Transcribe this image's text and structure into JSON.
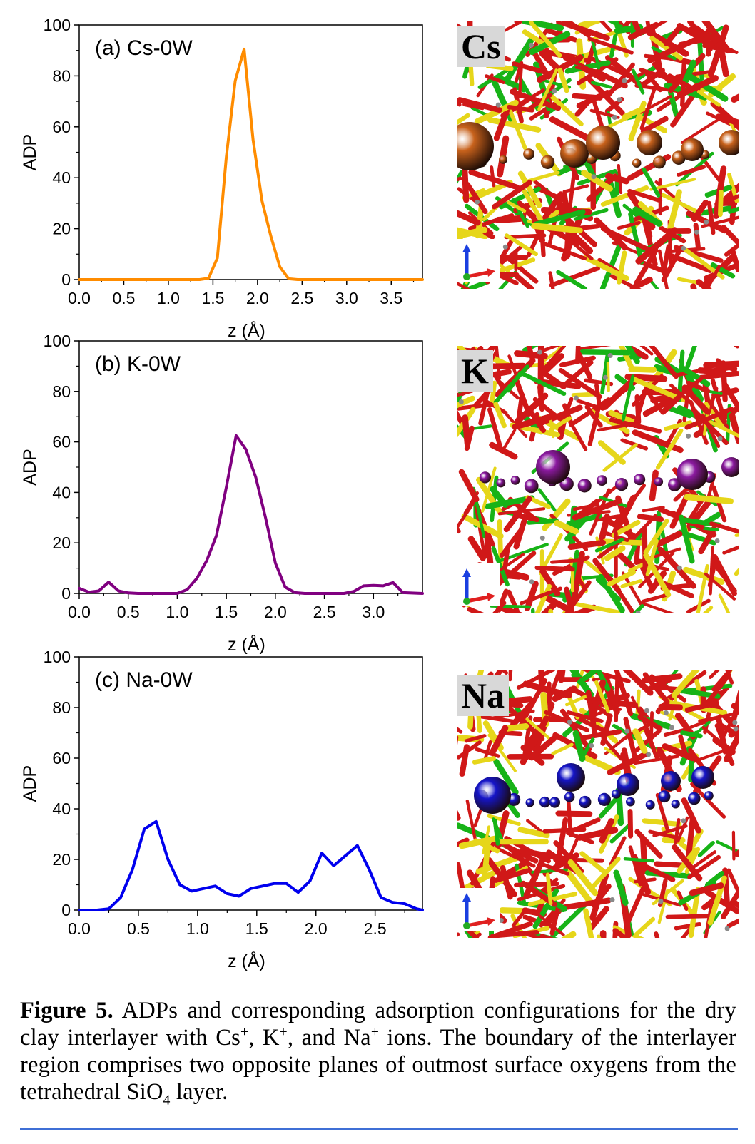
{
  "chart_data": [
    {
      "type": "line",
      "panel_label": "(a) Cs-0W",
      "xlabel": "z (Å)",
      "ylabel": "ADP",
      "xlim": [
        0,
        3.85
      ],
      "ylim": [
        0,
        100
      ],
      "xticks": [
        0.0,
        0.5,
        1.0,
        1.5,
        2.0,
        2.5,
        3.0,
        3.5
      ],
      "yticks": [
        0,
        20,
        40,
        60,
        80,
        100
      ],
      "color": "#ff8c00",
      "x": [
        0.0,
        1.35,
        1.45,
        1.55,
        1.65,
        1.75,
        1.85,
        1.95,
        2.05,
        2.15,
        2.25,
        2.35,
        2.45,
        3.85
      ],
      "y": [
        0,
        0,
        0.5,
        8.5,
        48,
        78,
        90.5,
        55,
        31,
        17,
        5,
        0.3,
        0,
        0
      ]
    },
    {
      "type": "line",
      "panel_label": "(b) K-0W",
      "xlabel": "z (Å)",
      "ylabel": "ADP",
      "xlim": [
        0,
        3.5
      ],
      "ylim": [
        0,
        100
      ],
      "xticks": [
        0.0,
        0.5,
        1.0,
        1.5,
        2.0,
        2.5,
        3.0
      ],
      "yticks": [
        0,
        20,
        40,
        60,
        80,
        100
      ],
      "color": "#800080",
      "x": [
        0.0,
        0.1,
        0.2,
        0.3,
        0.4,
        0.5,
        0.6,
        1.0,
        1.1,
        1.2,
        1.3,
        1.4,
        1.5,
        1.6,
        1.7,
        1.8,
        1.9,
        2.0,
        2.1,
        2.2,
        2.3,
        2.7,
        2.8,
        2.9,
        3.0,
        3.1,
        3.2,
        3.3,
        3.5
      ],
      "y": [
        2,
        0.5,
        1,
        4.5,
        1,
        0.2,
        0,
        0,
        1.5,
        6,
        13,
        23,
        42,
        62.5,
        57,
        46,
        30,
        12,
        2.5,
        0.3,
        0,
        0,
        0.8,
        3,
        3.2,
        3,
        4.3,
        0.3,
        0
      ]
    },
    {
      "type": "line",
      "panel_label": "(c) Na-0W",
      "xlabel": "z (Å)",
      "ylabel": "ADP",
      "xlim": [
        0,
        2.9
      ],
      "ylim": [
        0,
        100
      ],
      "xticks": [
        0.0,
        0.5,
        1.0,
        1.5,
        2.0,
        2.5
      ],
      "yticks": [
        0,
        20,
        40,
        60,
        80,
        100
      ],
      "color": "#0000ee",
      "x": [
        0.0,
        0.15,
        0.25,
        0.35,
        0.45,
        0.55,
        0.65,
        0.75,
        0.85,
        0.95,
        1.05,
        1.15,
        1.25,
        1.35,
        1.45,
        1.55,
        1.65,
        1.75,
        1.85,
        1.95,
        2.05,
        2.15,
        2.25,
        2.35,
        2.45,
        2.55,
        2.65,
        2.75,
        2.85,
        2.9
      ],
      "y": [
        0,
        0,
        0.5,
        5,
        16,
        32,
        35,
        20,
        10,
        7.5,
        8.5,
        9.5,
        6.5,
        5.5,
        8.5,
        9.5,
        10.5,
        10.5,
        7,
        11.5,
        22.5,
        17.5,
        21.5,
        25.5,
        16,
        5,
        3,
        2.5,
        0.5,
        0
      ]
    }
  ],
  "figures": [
    {
      "label": "Cs",
      "ion_color": "#c8621c"
    },
    {
      "label": "K",
      "ion_color": "#8b1aa0"
    },
    {
      "label": "Na",
      "ion_color": "#1515c8"
    }
  ],
  "caption": {
    "figure_label": "Figure 5.",
    "part1": " ADPs and corresponding adsorption configurations for the dry clay interlayer with Cs",
    "sup_cs": "+",
    "part2": ", K",
    "sup_k": "+",
    "part3": ", and Na",
    "sup_na": "+",
    "part4": " ions. The boundary of the interlayer region comprises two opposite planes of outmost surface oxygens from the tetrahedral SiO",
    "sub_4": "4",
    "part5": " layer."
  }
}
